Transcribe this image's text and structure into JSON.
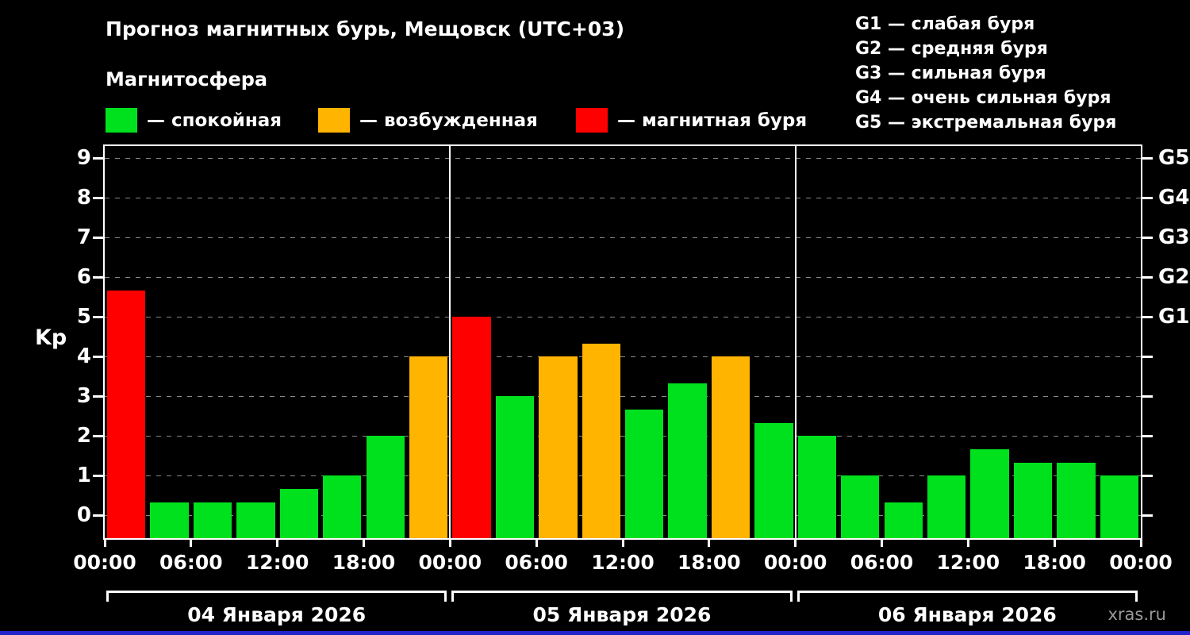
{
  "header": {
    "title": "Прогноз магнитных бурь, Мещовск (UTC+03)",
    "subtitle": "Магнитосфера"
  },
  "legend": {
    "items": [
      {
        "label": "— спокойная",
        "color": "#00e11e"
      },
      {
        "label": "— возбужденная",
        "color": "#ffb400"
      },
      {
        "label": "— магнитная буря",
        "color": "#ff0000"
      }
    ]
  },
  "g_scale": {
    "items": [
      {
        "label": "G1 — слабая буря"
      },
      {
        "label": "G2 — средняя буря"
      },
      {
        "label": "G3 — сильная буря"
      },
      {
        "label": "G4 — очень сильная буря"
      },
      {
        "label": "G5 — экстремальная буря"
      }
    ]
  },
  "chart_data": {
    "type": "bar",
    "title": "Прогноз магнитных бурь, Мещовск (UTC+03)",
    "ylabel": "Kp",
    "ylim": [
      0,
      9
    ],
    "yticks": [
      0,
      1,
      2,
      3,
      4,
      5,
      6,
      7,
      8,
      9
    ],
    "grid": "dashed-horizontal",
    "legend_position": "top",
    "bar_interval_hours": 3,
    "palette": {
      "green": "#00e11e",
      "orange": "#ffb400",
      "red": "#ff0000"
    },
    "right_axis_ticks": [
      {
        "label": "G1",
        "value": 5
      },
      {
        "label": "G2",
        "value": 6
      },
      {
        "label": "G3",
        "value": 7
      },
      {
        "label": "G4",
        "value": 8
      },
      {
        "label": "G5",
        "value": 9
      }
    ],
    "x_tick_labels": [
      "00:00",
      "06:00",
      "12:00",
      "18:00",
      "00:00",
      "06:00",
      "12:00",
      "18:00",
      "00:00",
      "06:00",
      "12:00",
      "18:00",
      "00:00"
    ],
    "days": [
      {
        "label": "04 Января 2026",
        "bars": [
          {
            "value": 5.67,
            "level": "red"
          },
          {
            "value": 0.33,
            "level": "green"
          },
          {
            "value": 0.33,
            "level": "green"
          },
          {
            "value": 0.33,
            "level": "green"
          },
          {
            "value": 0.67,
            "level": "green"
          },
          {
            "value": 1.0,
            "level": "green"
          },
          {
            "value": 2.0,
            "level": "green"
          },
          {
            "value": 4.0,
            "level": "orange"
          }
        ]
      },
      {
        "label": "05 Января 2026",
        "bars": [
          {
            "value": 5.0,
            "level": "red"
          },
          {
            "value": 3.0,
            "level": "green"
          },
          {
            "value": 4.0,
            "level": "orange"
          },
          {
            "value": 4.33,
            "level": "orange"
          },
          {
            "value": 2.67,
            "level": "green"
          },
          {
            "value": 3.33,
            "level": "green"
          },
          {
            "value": 4.0,
            "level": "orange"
          },
          {
            "value": 2.33,
            "level": "green"
          }
        ]
      },
      {
        "label": "06 Января 2026",
        "bars": [
          {
            "value": 2.0,
            "level": "green"
          },
          {
            "value": 1.0,
            "level": "green"
          },
          {
            "value": 0.33,
            "level": "green"
          },
          {
            "value": 1.0,
            "level": "green"
          },
          {
            "value": 1.67,
            "level": "green"
          },
          {
            "value": 1.33,
            "level": "green"
          },
          {
            "value": 1.33,
            "level": "green"
          },
          {
            "value": 1.0,
            "level": "green"
          }
        ]
      }
    ]
  },
  "watermark": "xras.ru"
}
